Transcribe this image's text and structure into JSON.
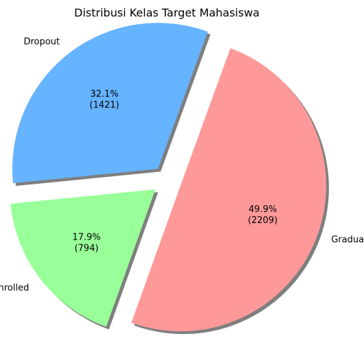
{
  "chart_data": {
    "type": "pie",
    "title": "Distribusi Kelas Target Mahasiswa",
    "categories": [
      "Dropout",
      "Enrolled",
      "Graduate"
    ],
    "values": [
      1421,
      794,
      2209
    ],
    "percent_labels": [
      "32.1%",
      "17.9%",
      "49.9%"
    ],
    "count_labels": [
      "(1421)",
      "(794)",
      "(2209)"
    ],
    "colors": [
      "#66b3ff",
      "#99ff99",
      "#ff9999"
    ],
    "exploded": [
      true,
      true,
      true
    ],
    "shadow": true,
    "start_angle_deg": 70,
    "direction": "counterclockwise"
  }
}
